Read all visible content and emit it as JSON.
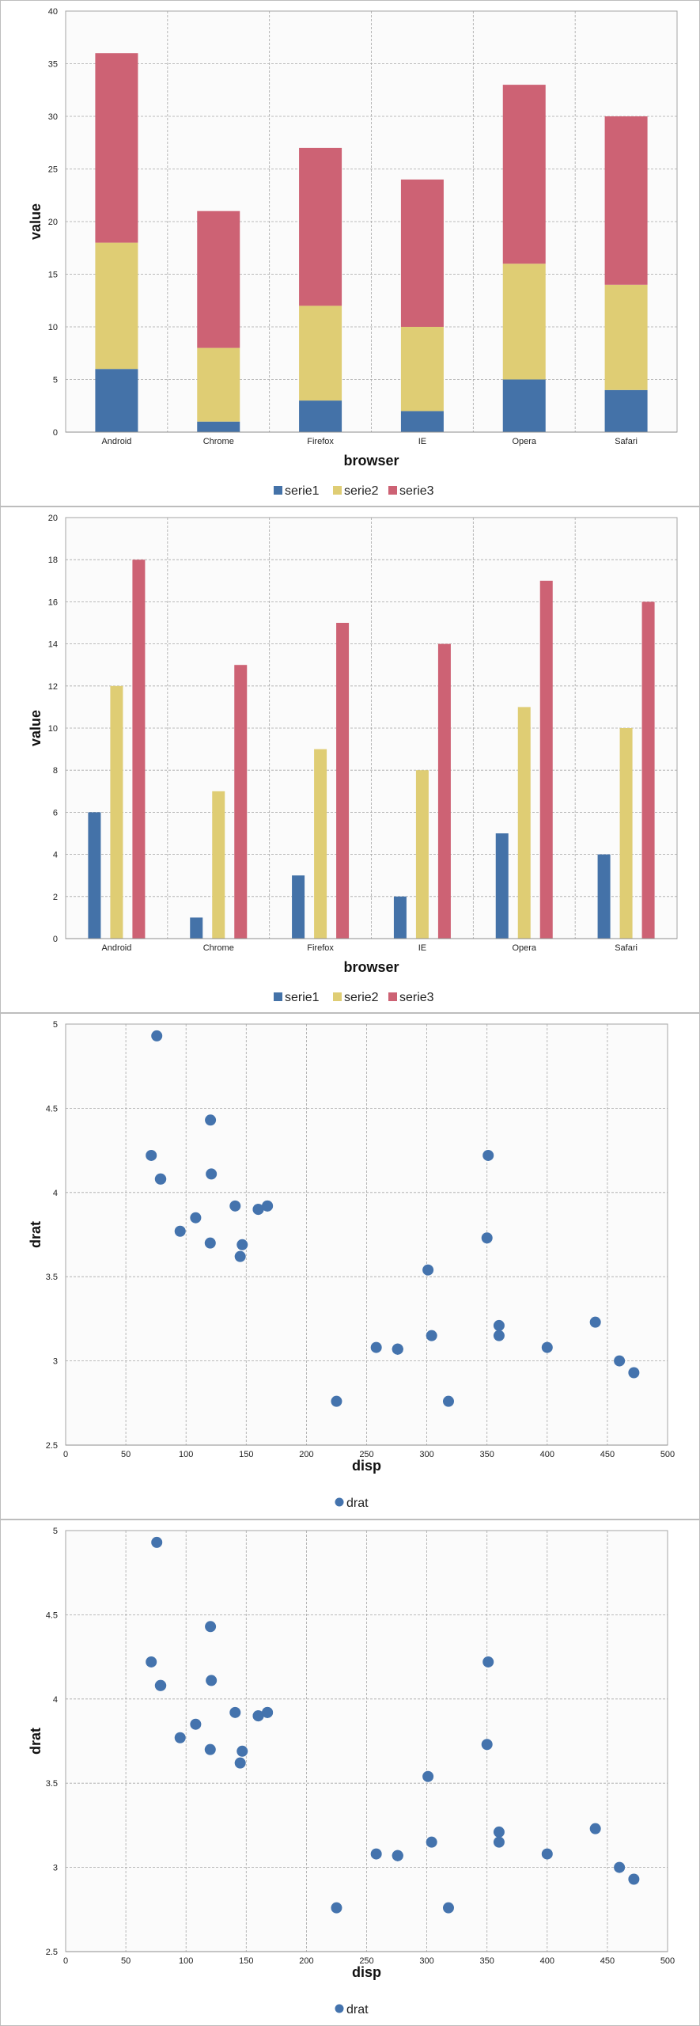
{
  "colors": {
    "serie1": "#4472a8",
    "serie2": "#dfcd74",
    "serie3": "#cd6274",
    "point": "#4473ad",
    "grid": "#a6a6a6",
    "plot_bg": "#fbfbfb"
  },
  "chart_data": [
    {
      "type": "bar",
      "stacked": true,
      "xlabel": "browser",
      "ylabel": "value",
      "ylim": [
        0,
        40
      ],
      "yticks": [
        0,
        5,
        10,
        15,
        20,
        25,
        30,
        35,
        40
      ],
      "categories": [
        "Android",
        "Chrome",
        "Firefox",
        "IE",
        "Opera",
        "Safari"
      ],
      "series": [
        {
          "name": "serie1",
          "values": [
            6,
            1,
            3,
            2,
            5,
            4
          ]
        },
        {
          "name": "serie2",
          "values": [
            12,
            7,
            9,
            8,
            11,
            10
          ]
        },
        {
          "name": "serie3",
          "values": [
            18,
            13,
            15,
            14,
            17,
            16
          ]
        }
      ],
      "grid": true,
      "legend": "bottom"
    },
    {
      "type": "bar",
      "stacked": false,
      "xlabel": "browser",
      "ylabel": "value",
      "ylim": [
        0,
        20
      ],
      "yticks": [
        0,
        2,
        4,
        6,
        8,
        10,
        12,
        14,
        16,
        18,
        20
      ],
      "categories": [
        "Android",
        "Chrome",
        "Firefox",
        "IE",
        "Opera",
        "Safari"
      ],
      "series": [
        {
          "name": "serie1",
          "values": [
            6,
            1,
            3,
            2,
            5,
            4
          ]
        },
        {
          "name": "serie2",
          "values": [
            12,
            7,
            9,
            8,
            11,
            10
          ]
        },
        {
          "name": "serie3",
          "values": [
            18,
            13,
            15,
            14,
            17,
            16
          ]
        }
      ],
      "grid": true,
      "legend": "bottom"
    },
    {
      "type": "scatter",
      "xlabel": "disp",
      "ylabel": "drat",
      "xlim": [
        0,
        500
      ],
      "ylim": [
        2.5,
        5
      ],
      "xticks": [
        "0",
        "50",
        "100",
        "150",
        "200",
        "250",
        "300",
        "350",
        "400",
        "450",
        "500"
      ],
      "yticks": [
        "2.5",
        "3",
        "3.5",
        "4",
        "4.5",
        "5"
      ],
      "series": [
        {
          "name": "drat",
          "points": [
            [
              160,
              3.9
            ],
            [
              160,
              3.9
            ],
            [
              108,
              3.85
            ],
            [
              258,
              3.08
            ],
            [
              360,
              3.15
            ],
            [
              225,
              2.76
            ],
            [
              360,
              3.21
            ],
            [
              146.7,
              3.69
            ],
            [
              140.8,
              3.92
            ],
            [
              167.6,
              3.92
            ],
            [
              167.6,
              3.92
            ],
            [
              275.8,
              3.07
            ],
            [
              275.8,
              3.07
            ],
            [
              275.8,
              3.07
            ],
            [
              472,
              2.93
            ],
            [
              460,
              3.0
            ],
            [
              440,
              3.23
            ],
            [
              78.7,
              4.08
            ],
            [
              75.7,
              4.93
            ],
            [
              71.1,
              4.22
            ],
            [
              120.1,
              3.7
            ],
            [
              318,
              2.76
            ],
            [
              304,
              3.15
            ],
            [
              350,
              3.73
            ],
            [
              400,
              3.08
            ],
            [
              79,
              4.08
            ],
            [
              120.3,
              4.43
            ],
            [
              95.1,
              3.77
            ],
            [
              351,
              4.22
            ],
            [
              145,
              3.62
            ],
            [
              301,
              3.54
            ],
            [
              121,
              4.11
            ]
          ]
        }
      ],
      "grid": true,
      "legend": "bottom"
    },
    {
      "type": "scatter",
      "xlabel": "disp",
      "ylabel": "drat",
      "xlim": [
        0,
        500
      ],
      "ylim": [
        2.5,
        5
      ],
      "xticks": [
        "0",
        "50",
        "100",
        "150",
        "200",
        "250",
        "300",
        "350",
        "400",
        "450",
        "500"
      ],
      "yticks": [
        "2.5",
        "3",
        "3.5",
        "4",
        "4.5",
        "5"
      ],
      "series": [
        {
          "name": "drat",
          "points": [
            [
              160,
              3.9
            ],
            [
              160,
              3.9
            ],
            [
              108,
              3.85
            ],
            [
              258,
              3.08
            ],
            [
              360,
              3.15
            ],
            [
              225,
              2.76
            ],
            [
              360,
              3.21
            ],
            [
              146.7,
              3.69
            ],
            [
              140.8,
              3.92
            ],
            [
              167.6,
              3.92
            ],
            [
              167.6,
              3.92
            ],
            [
              275.8,
              3.07
            ],
            [
              275.8,
              3.07
            ],
            [
              275.8,
              3.07
            ],
            [
              472,
              2.93
            ],
            [
              460,
              3.0
            ],
            [
              440,
              3.23
            ],
            [
              78.7,
              4.08
            ],
            [
              75.7,
              4.93
            ],
            [
              71.1,
              4.22
            ],
            [
              120.1,
              3.7
            ],
            [
              318,
              2.76
            ],
            [
              304,
              3.15
            ],
            [
              350,
              3.73
            ],
            [
              400,
              3.08
            ],
            [
              79,
              4.08
            ],
            [
              120.3,
              4.43
            ],
            [
              95.1,
              3.77
            ],
            [
              351,
              4.22
            ],
            [
              145,
              3.62
            ],
            [
              301,
              3.54
            ],
            [
              121,
              4.11
            ]
          ]
        }
      ],
      "grid": true,
      "legend": "bottom"
    }
  ]
}
